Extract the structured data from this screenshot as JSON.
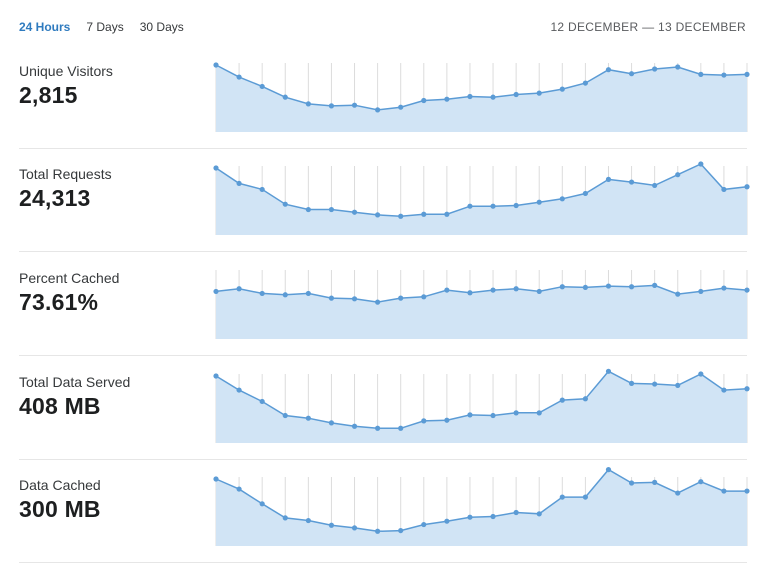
{
  "tabs": [
    {
      "label": "24 Hours",
      "active": true
    },
    {
      "label": "7 Days",
      "active": false
    },
    {
      "label": "30 Days",
      "active": false
    }
  ],
  "date_range": "12 DECEMBER — 13 DECEMBER",
  "colors": {
    "accent": "#2f7bbf",
    "line": "#5b9bd5",
    "fill": "#d1e4f5"
  },
  "metrics": [
    {
      "label": "Unique Visitors",
      "value": "2,815"
    },
    {
      "label": "Total Requests",
      "value": "24,313"
    },
    {
      "label": "Percent Cached",
      "value": "73.61%"
    },
    {
      "label": "Total Data Served",
      "value": "408 MB"
    },
    {
      "label": "Data Cached",
      "value": "300 MB"
    }
  ],
  "chart_data": [
    {
      "type": "area",
      "ylim": [
        0,
        100
      ],
      "values": [
        100,
        82,
        68,
        52,
        42,
        39,
        40,
        33,
        37,
        47,
        49,
        53,
        52,
        56,
        58,
        64,
        73,
        93,
        87,
        94,
        97,
        86,
        85,
        86
      ]
    },
    {
      "type": "area",
      "ylim": [
        0,
        100
      ],
      "values": [
        100,
        77,
        68,
        46,
        38,
        38,
        34,
        30,
        28,
        31,
        31,
        43,
        43,
        44,
        49,
        54,
        62,
        83,
        79,
        74,
        90,
        106,
        68,
        72
      ]
    },
    {
      "type": "area",
      "ylim": [
        0,
        100
      ],
      "values": [
        71,
        75,
        68,
        66,
        68,
        61,
        60,
        55,
        61,
        63,
        73,
        69,
        73,
        75,
        71,
        78,
        77,
        79,
        78,
        80,
        67,
        71,
        76,
        73
      ]
    },
    {
      "type": "area",
      "ylim": [
        0,
        100
      ],
      "values": [
        100,
        79,
        62,
        41,
        37,
        30,
        25,
        22,
        22,
        33,
        34,
        42,
        41,
        45,
        45,
        64,
        66,
        107,
        89,
        88,
        86,
        103,
        79,
        81
      ]
    },
    {
      "type": "area",
      "ylim": [
        0,
        100
      ],
      "values": [
        100,
        85,
        63,
        42,
        38,
        31,
        27,
        22,
        23,
        32,
        37,
        43,
        44,
        50,
        48,
        73,
        73,
        114,
        94,
        95,
        79,
        96,
        82,
        82
      ]
    }
  ]
}
